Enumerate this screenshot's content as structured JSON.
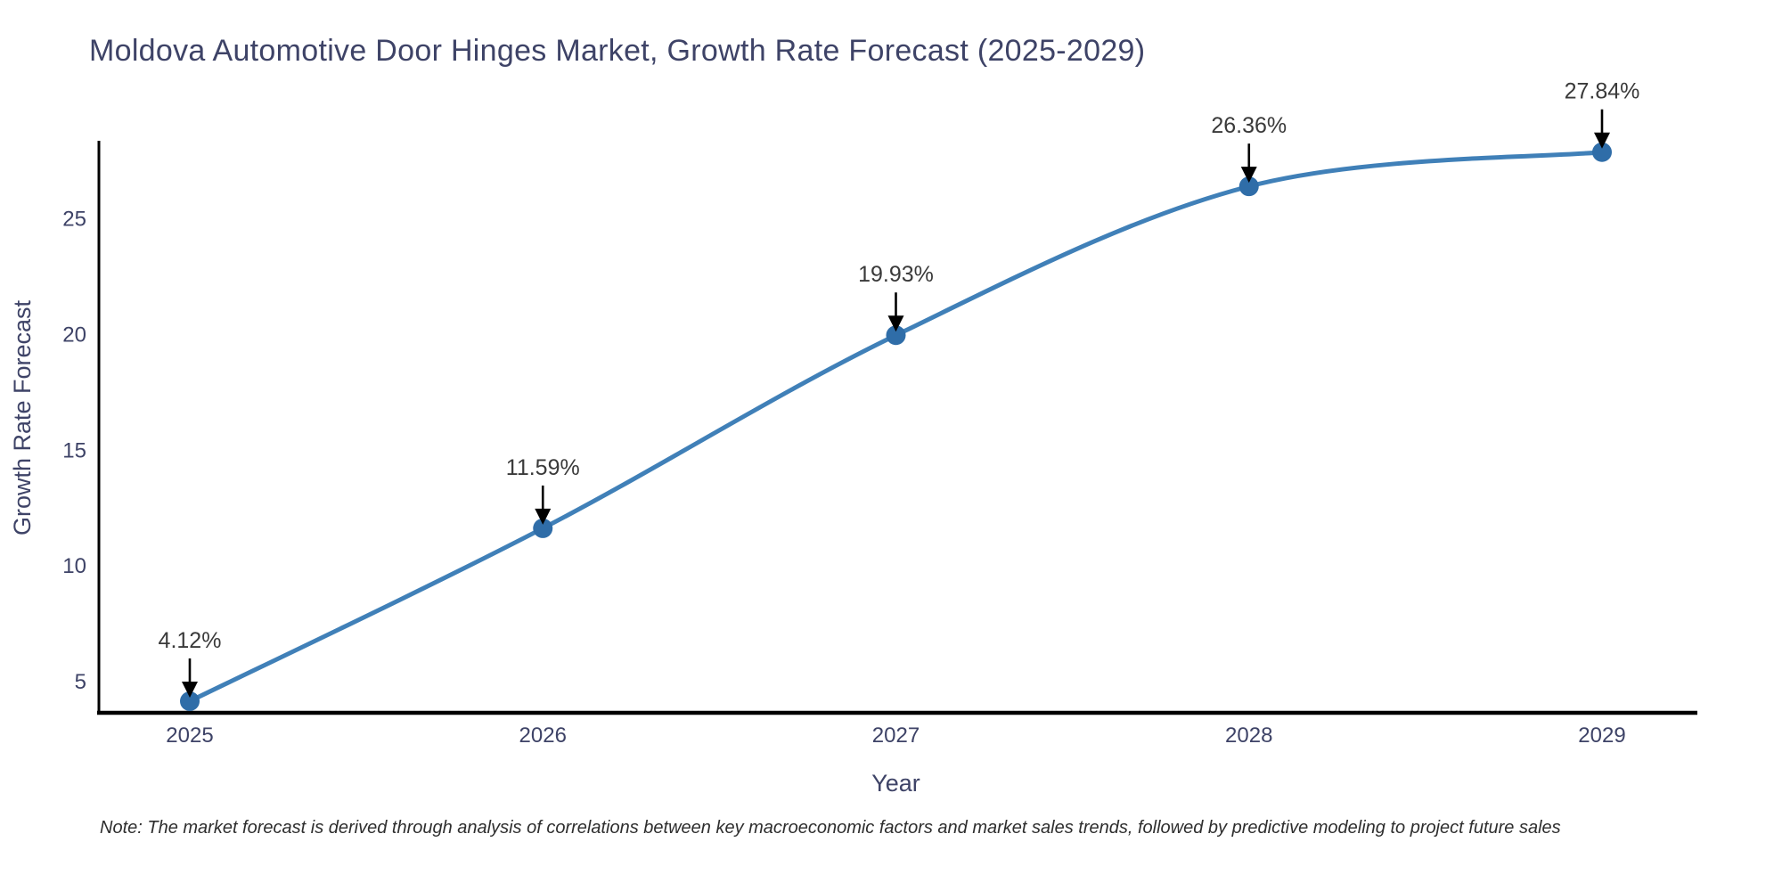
{
  "chart_data": {
    "type": "line",
    "title": "Moldova Automotive Door Hinges Market, Growth Rate Forecast (2025-2029)",
    "xlabel": "Year",
    "ylabel": "Growth Rate Forecast",
    "x": [
      2025,
      2026,
      2027,
      2028,
      2029
    ],
    "values": [
      4.12,
      11.59,
      19.93,
      26.36,
      27.84
    ],
    "point_labels": [
      "4.12%",
      "11.59%",
      "19.93%",
      "26.36%",
      "27.84%"
    ],
    "y_ticks": [
      5,
      10,
      15,
      20,
      25
    ],
    "ylim": [
      3.62,
      28.33
    ],
    "line_shape": "spline",
    "grid": false,
    "legend_position": "none",
    "colors": {
      "line": "#4080b8",
      "marker": "#2f6da8",
      "axis": "#000000",
      "title_text": "#3e4367",
      "tick_text": "#3e4367",
      "annotation_text": "#3a3a3a",
      "arrow": "#000000",
      "note_text": "#2e2e2e",
      "background": "#ffffff"
    }
  },
  "note": {
    "text": "Note: The market forecast is derived through analysis of correlations between key macroeconomic factors and market sales trends, followed by predictive modeling to project future sales"
  }
}
